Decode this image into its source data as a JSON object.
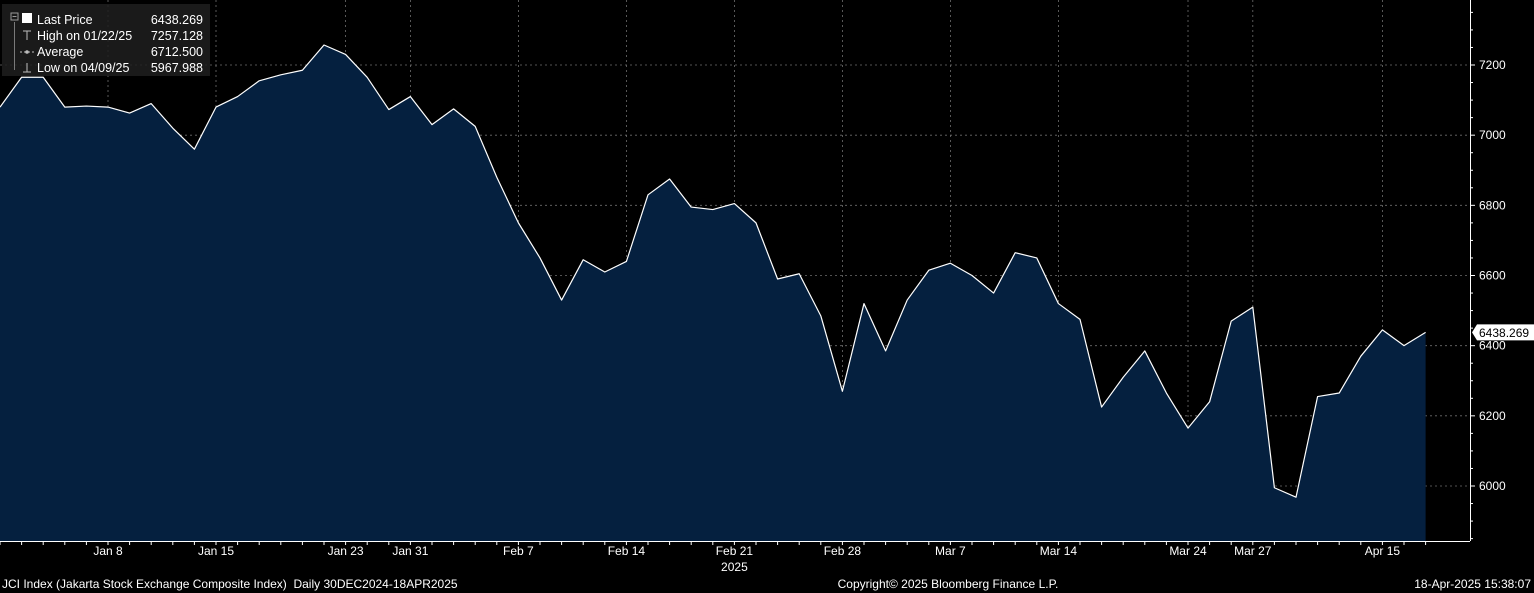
{
  "colors": {
    "background": "#000000",
    "area_fill": "#05203f",
    "line": "#ffffff",
    "grid": "#6e6e6e",
    "text": "#ffffff",
    "legend_bg": "#1e1e1e",
    "last_price_tag_bg": "#ffffff",
    "last_price_tag_text": "#000000"
  },
  "legend": {
    "items": [
      {
        "label": "Last Price",
        "value": "6438.269",
        "icon": "square-icon"
      },
      {
        "label": "High on 01/22/25",
        "value": "7257.128",
        "icon": "high-marker-icon"
      },
      {
        "label": "Average",
        "value": "6712.500",
        "icon": "average-marker-icon"
      },
      {
        "label": "Low on 04/09/25",
        "value": "5967.988",
        "icon": "low-marker-icon"
      }
    ]
  },
  "last_price_tag": "6438.269",
  "footer": {
    "left": "JCI Index (Jakarta Stock Exchange Composite Index)  Daily 30DEC2024-18APR2025",
    "center": "Copyright© 2025 Bloomberg Finance L.P.",
    "right": "18-Apr-2025 15:38:07"
  },
  "chart_data": {
    "type": "area",
    "title": "",
    "xlabel": "",
    "ylabel": "",
    "ylim": [
      5850,
      7450
    ],
    "yticks": [
      6000,
      6200,
      6400,
      6600,
      6800,
      7000,
      7200
    ],
    "grid": true,
    "legend_position": "top-left",
    "x_tick_labels": [
      "Jan 8",
      "Jan 15",
      "Jan 23",
      "Jan 31",
      "Feb 7",
      "Feb 14",
      "Feb 21",
      "Feb 28",
      "Mar 7",
      "Mar 14",
      "Mar 24",
      "Mar 27",
      "Apr 15"
    ],
    "x_tick_indices": [
      5,
      10,
      16,
      19,
      24,
      29,
      34,
      39,
      44,
      49,
      55,
      58,
      64
    ],
    "year_label": "2025",
    "year_label_index": 34,
    "series": [
      {
        "name": "Last Price",
        "values": [
          7080,
          7165,
          7165,
          7080,
          7083,
          7080,
          7063,
          7090,
          7020,
          6960,
          7080,
          7110,
          7155,
          7172,
          7185,
          7257,
          7230,
          7165,
          7073,
          7110,
          7030,
          7075,
          7025,
          6880,
          6750,
          6650,
          6530,
          6645,
          6610,
          6640,
          6830,
          6875,
          6795,
          6788,
          6805,
          6750,
          6590,
          6605,
          6485,
          6270,
          6520,
          6385,
          6530,
          6615,
          6635,
          6600,
          6550,
          6665,
          6650,
          6520,
          6475,
          6225,
          6310,
          6385,
          6265,
          6165,
          6240,
          6470,
          6510,
          5995,
          5968,
          6255,
          6265,
          6370,
          6445,
          6400,
          6438
        ]
      }
    ]
  }
}
